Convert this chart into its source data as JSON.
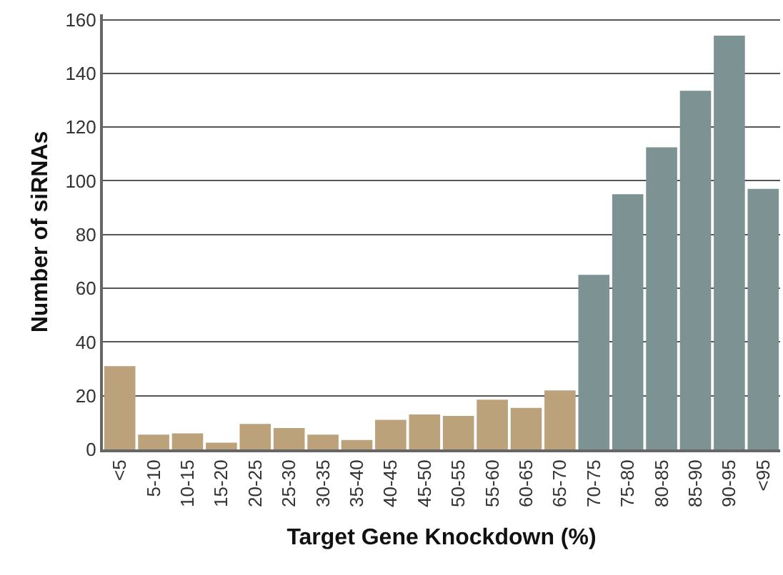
{
  "chart_data": {
    "type": "bar",
    "xlabel": "Target Gene Knockdown (%)",
    "ylabel": "Number of siRNAs",
    "categories": [
      "<5",
      "5-10",
      "10-15",
      "15-20",
      "20-25",
      "25-30",
      "30-35",
      "35-40",
      "40-45",
      "45-50",
      "50-55",
      "55-60",
      "60-65",
      "65-70",
      "70-75",
      "75-80",
      "80-85",
      "85-90",
      "90-95",
      "<95"
    ],
    "values": [
      31,
      5.5,
      6,
      2.5,
      9.5,
      8,
      5.5,
      3.5,
      11,
      13,
      12.5,
      18.5,
      15.5,
      22,
      65,
      95,
      112.5,
      133.5,
      154,
      97
    ],
    "colors": [
      "#bba27a",
      "#bba27a",
      "#bba27a",
      "#bba27a",
      "#bba27a",
      "#bba27a",
      "#bba27a",
      "#bba27a",
      "#bba27a",
      "#bba27a",
      "#bba27a",
      "#bba27a",
      "#bba27a",
      "#bba27a",
      "#7d9292",
      "#7d9292",
      "#7d9292",
      "#7d9292",
      "#7d9292",
      "#7d9292"
    ],
    "ylim": [
      0,
      162
    ],
    "yticks": [
      0,
      20,
      40,
      60,
      80,
      100,
      120,
      140,
      160
    ],
    "grid": "y"
  }
}
